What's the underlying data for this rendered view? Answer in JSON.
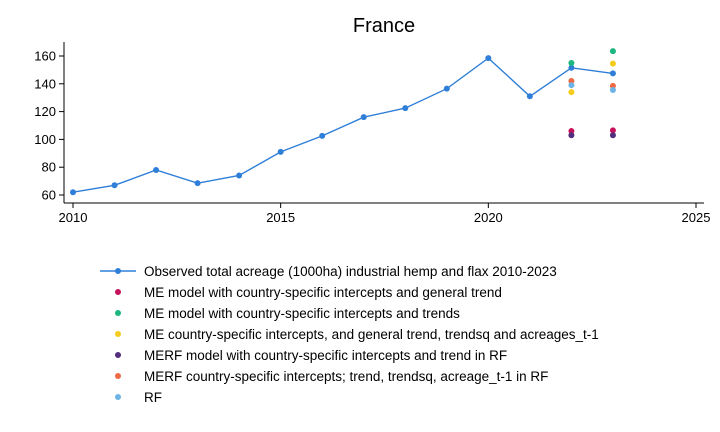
{
  "chart_data": {
    "type": "scatter",
    "title": "France",
    "xlabel": "",
    "ylabel": "",
    "xlim": [
      2010,
      2025
    ],
    "ylim": [
      55,
      170
    ],
    "x_ticks": [
      "2010",
      "2015",
      "2020",
      "2025"
    ],
    "y_ticks": [
      "60",
      "80",
      "100",
      "120",
      "140",
      "160"
    ],
    "grid": false,
    "legend_position": "bottom",
    "series": [
      {
        "name": "Observed total acreage (1000ha) industrial hemp and flax 2010-2023",
        "style": "line-markers",
        "color": "#2f7fd8",
        "x": [
          2010,
          2011,
          2012,
          2013,
          2014,
          2015,
          2016,
          2017,
          2018,
          2019,
          2020,
          2021,
          2022,
          2023
        ],
        "y": [
          62,
          67,
          78,
          68.5,
          74,
          91,
          102.5,
          116,
          122.5,
          136.5,
          158.5,
          131,
          151.5,
          147.5
        ]
      },
      {
        "name": "ME model with country-specific intercepts and general trend",
        "style": "markers",
        "color": "#c6135b",
        "x": [
          2022,
          2023
        ],
        "y": [
          106,
          106.5
        ]
      },
      {
        "name": "ME model with country-specific intercepts and trends",
        "style": "markers",
        "color": "#1cb77f",
        "x": [
          2022,
          2023
        ],
        "y": [
          155,
          163.5
        ]
      },
      {
        "name": "ME country-specific intercepts, and general trend, trendsq and acreages_t-1",
        "style": "markers",
        "color": "#f5cc1b",
        "x": [
          2022,
          2023
        ],
        "y": [
          134,
          154.5
        ]
      },
      {
        "name": "MERF model with country-specific intercepts and trend in RF",
        "style": "markers",
        "color": "#532e7e",
        "x": [
          2022,
          2023
        ],
        "y": [
          103,
          103
        ]
      },
      {
        "name": "MERF country-specific intercepts; trend, trendsq, acreage_t-1 in RF",
        "style": "markers",
        "color": "#ee6a43",
        "x": [
          2022,
          2023
        ],
        "y": [
          142,
          138.5
        ]
      },
      {
        "name": "RF",
        "style": "markers",
        "color": "#6db3e6",
        "x": [
          2022,
          2023
        ],
        "y": [
          139,
          135.5
        ]
      }
    ]
  }
}
